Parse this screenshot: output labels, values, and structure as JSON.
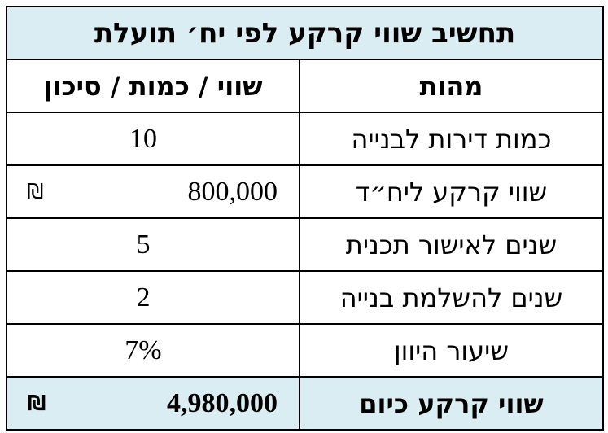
{
  "table": {
    "title": "תחשיב שווי קרקע לפי יח׳ תועלת",
    "headers": {
      "label": "מהות",
      "value": "שווי / כמות / סיכון"
    },
    "rows": [
      {
        "label": "כמות דירות לבנייה",
        "value": "10",
        "currency": ""
      },
      {
        "label": "שווי קרקע ליח״ד",
        "value": "800,000",
        "currency": "₪"
      },
      {
        "label": "שנים לאישור תכנית",
        "value": "5",
        "currency": ""
      },
      {
        "label": "שנים להשלמת בנייה",
        "value": "2",
        "currency": ""
      },
      {
        "label": "שיעור היוון",
        "value": "7%",
        "currency": ""
      }
    ],
    "total": {
      "label": "שווי קרקע כיום",
      "value": "4,980,000",
      "currency": "₪"
    }
  },
  "colors": {
    "header_bg": "#daedf3",
    "border": "#000000"
  }
}
